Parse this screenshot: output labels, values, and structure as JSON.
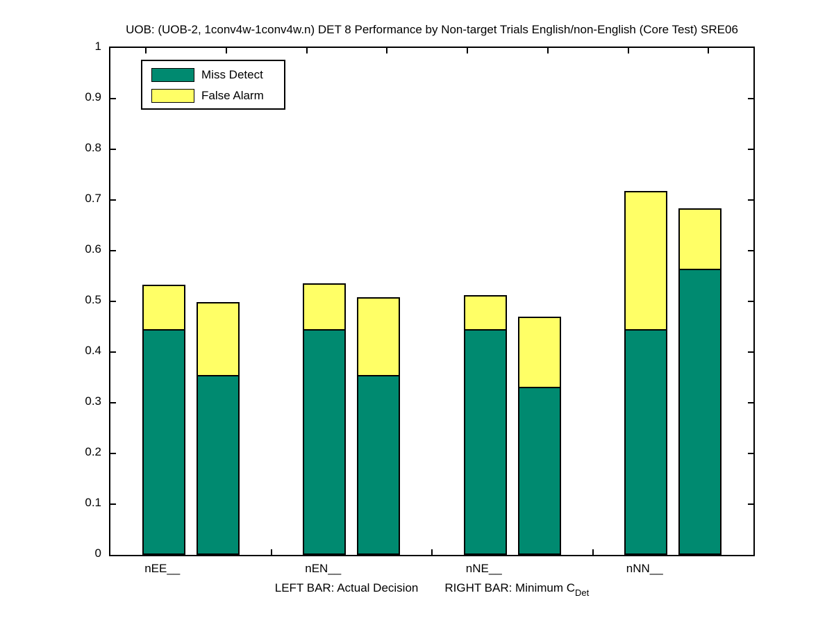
{
  "figure": {
    "title": "UOB: (UOB-2, 1conv4w-1conv4w.n) DET 8 Performance by Non-target Trials English/non-English (Core Test) SRE06",
    "xaxis_note": {
      "left_part": "LEFT BAR: Actual Decision",
      "right_part": "RIGHT BAR: Minimum C",
      "right_subscript": "Det"
    }
  },
  "legend": {
    "items": [
      {
        "label": "Miss Detect",
        "color": "#008a70"
      },
      {
        "label": "False Alarm",
        "color": "#ffff66"
      }
    ]
  },
  "chart_data": {
    "type": "bar",
    "variant": "paired-stacked-bars",
    "title": "UOB: (UOB-2, 1conv4w-1conv4w.n) DET 8 Performance by Non-target Trials English/non-English (Core Test) SRE06",
    "categories": [
      "nEE__",
      "nEN__",
      "nNE__",
      "nNN__"
    ],
    "bar_meaning": {
      "left": "Actual Decision",
      "right": "Minimum CDet"
    },
    "series": [
      {
        "name": "Miss Detect",
        "bar": "left",
        "color": "#008a70",
        "values": [
          0.445,
          0.445,
          0.445,
          0.445
        ]
      },
      {
        "name": "False Alarm",
        "bar": "left",
        "color": "#ffff66",
        "values": [
          0.088,
          0.09,
          0.067,
          0.272
        ]
      },
      {
        "name": "Miss Detect",
        "bar": "right",
        "color": "#008a70",
        "values": [
          0.355,
          0.355,
          0.332,
          0.564
        ]
      },
      {
        "name": "False Alarm",
        "bar": "right",
        "color": "#ffff66",
        "values": [
          0.144,
          0.153,
          0.138,
          0.119
        ]
      }
    ],
    "ylim": [
      0,
      1
    ],
    "yticks": [
      "0",
      "0.1",
      "0.2",
      "0.3",
      "0.4",
      "0.5",
      "0.6",
      "0.7",
      "0.8",
      "0.9",
      "1"
    ],
    "xlabel": "LEFT BAR: Actual Decision   RIGHT BAR: Minimum C_Det",
    "ylabel": "",
    "legend": [
      "Miss Detect",
      "False Alarm"
    ],
    "legend_position": "top-left",
    "grid": false,
    "axis_color": "#000000",
    "background_color": "#ffffff"
  }
}
